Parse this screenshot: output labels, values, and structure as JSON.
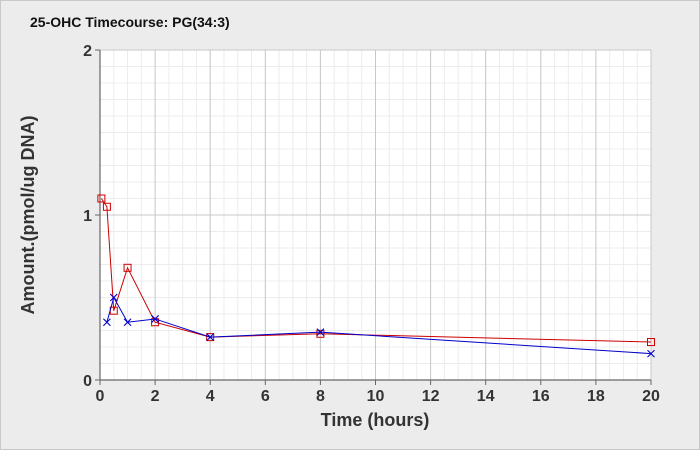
{
  "chart_data": {
    "type": "line",
    "title": "25-OHC Timecourse: PG(34:3)",
    "xlabel": "Time (hours)",
    "ylabel": "Amount.(pmol/ug DNA)",
    "xlim": [
      0,
      20
    ],
    "ylim": [
      0,
      2
    ],
    "x_ticks": [
      "0",
      "2",
      "4",
      "6",
      "8",
      "10",
      "12",
      "14",
      "16",
      "18",
      "20"
    ],
    "y_ticks": [
      "0",
      "1",
      "2"
    ],
    "grid": true,
    "series": [
      {
        "color": "#cc0000",
        "marker": "square",
        "x": [
          0.05,
          0.25,
          0.5,
          1,
          2,
          4,
          8,
          20
        ],
        "y": [
          1.1,
          1.05,
          0.42,
          0.68,
          0.35,
          0.26,
          0.28,
          0.23
        ]
      },
      {
        "color": "#0000cc",
        "marker": "x",
        "x": [
          0.25,
          0.5,
          1,
          2,
          4,
          8,
          20
        ],
        "y": [
          0.35,
          0.5,
          0.35,
          0.37,
          0.26,
          0.29,
          0.16
        ]
      }
    ]
  }
}
